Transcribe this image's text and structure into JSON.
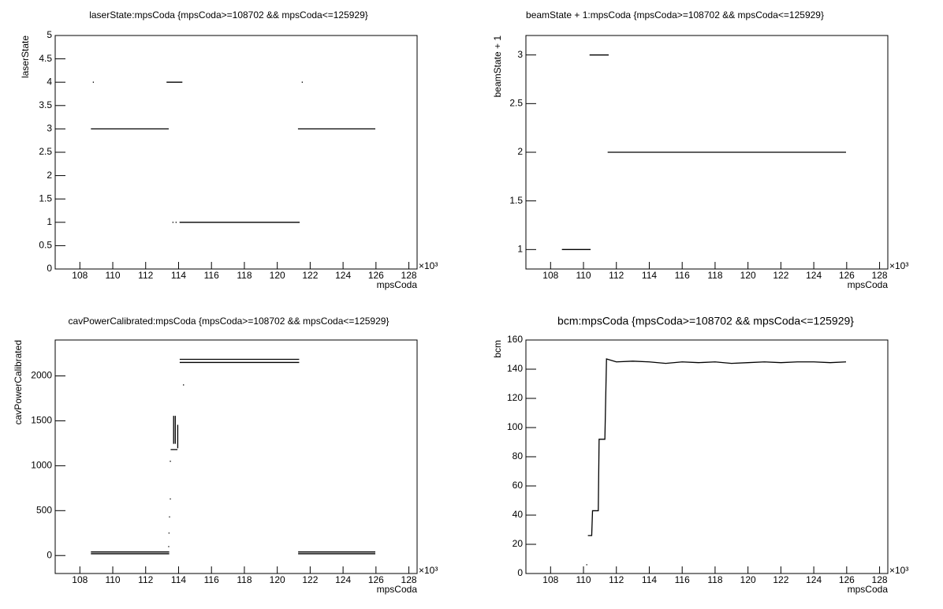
{
  "chart_data": [
    {
      "type": "line",
      "title": "laserState:mpsCoda {mpsCoda>=108702 && mpsCoda<=125929}",
      "x_label": "mpsCoda",
      "y_label": "laserState",
      "x_multiplier": "×10³",
      "color": "#000000",
      "x": [
        108820,
        null,
        108702,
        113370,
        null,
        113300,
        114200,
        null,
        113660,
        null,
        113850,
        null,
        114090,
        121330,
        null,
        121520,
        null,
        121290,
        125929
      ],
      "values": [
        4,
        null,
        3,
        3,
        null,
        4,
        4,
        null,
        1,
        null,
        1,
        null,
        1,
        1,
        null,
        4,
        null,
        3,
        3
      ],
      "xlim": [
        106500,
        128500
      ],
      "ylim": [
        0,
        5
      ],
      "xticks": [
        {
          "value": 108000,
          "label": "108"
        },
        {
          "value": 110000,
          "label": "110"
        },
        {
          "value": 112000,
          "label": "112"
        },
        {
          "value": 114000,
          "label": "114"
        },
        {
          "value": 116000,
          "label": "116"
        },
        {
          "value": 118000,
          "label": "118"
        },
        {
          "value": 120000,
          "label": "120"
        },
        {
          "value": 122000,
          "label": "122"
        },
        {
          "value": 124000,
          "label": "124"
        },
        {
          "value": 126000,
          "label": "126"
        },
        {
          "value": 128000,
          "label": "128"
        }
      ],
      "yticks": [
        0,
        0.5,
        1,
        1.5,
        2,
        2.5,
        3,
        3.5,
        4,
        4.5,
        5
      ]
    },
    {
      "type": "line",
      "title": "beamState + 1:mpsCoda {mpsCoda>=108702 && mpsCoda<=125929}",
      "x_label": "mpsCoda",
      "y_label": "beamState + 1",
      "x_multiplier": "×10³",
      "color": "#000000",
      "x": [
        108720,
        110400,
        null,
        110400,
        111500,
        null,
        111500,
        125929
      ],
      "values": [
        1,
        1,
        null,
        3,
        3,
        null,
        2,
        2
      ],
      "xlim": [
        106500,
        128500
      ],
      "ylim": [
        0.8,
        3.2
      ],
      "xticks": [
        {
          "value": 108000,
          "label": "108"
        },
        {
          "value": 110000,
          "label": "110"
        },
        {
          "value": 112000,
          "label": "112"
        },
        {
          "value": 114000,
          "label": "114"
        },
        {
          "value": 116000,
          "label": "116"
        },
        {
          "value": 118000,
          "label": "118"
        },
        {
          "value": 120000,
          "label": "120"
        },
        {
          "value": 122000,
          "label": "122"
        },
        {
          "value": 124000,
          "label": "124"
        },
        {
          "value": 126000,
          "label": "126"
        },
        {
          "value": 128000,
          "label": "128"
        }
      ],
      "yticks": [
        1,
        1.5,
        2,
        2.5,
        3
      ]
    },
    {
      "type": "line",
      "title": "cavPowerCalibrated:mpsCoda {mpsCoda>=108702 && mpsCoda<=125929}",
      "x_label": "mpsCoda",
      "y_label": "cavPowerCalibrated",
      "x_multiplier": "×10³",
      "color": "#000000",
      "x": [
        108702,
        113400,
        null,
        108702,
        113400,
        null,
        113400,
        null,
        113420,
        null,
        113450,
        null,
        113500,
        null,
        113500,
        null,
        113550,
        113900,
        null,
        113700,
        113700,
        null,
        113800,
        113800,
        null,
        113950,
        113950,
        null,
        114300,
        null,
        114100,
        121300,
        null,
        114100,
        121300,
        null,
        121300,
        125929,
        null,
        121300,
        125929
      ],
      "values": [
        20,
        20,
        null,
        40,
        40,
        null,
        100,
        null,
        250,
        null,
        430,
        null,
        630,
        null,
        1050,
        null,
        1180,
        1180,
        null,
        1250,
        1550,
        null,
        1250,
        1550,
        null,
        1200,
        1450,
        null,
        1900,
        null,
        2150,
        2150,
        null,
        2185,
        2185,
        null,
        20,
        20,
        null,
        40,
        40
      ],
      "xlim": [
        106500,
        128500
      ],
      "ylim": [
        -200,
        2400
      ],
      "xticks": [
        {
          "value": 108000,
          "label": "108"
        },
        {
          "value": 110000,
          "label": "110"
        },
        {
          "value": 112000,
          "label": "112"
        },
        {
          "value": 114000,
          "label": "114"
        },
        {
          "value": 116000,
          "label": "116"
        },
        {
          "value": 118000,
          "label": "118"
        },
        {
          "value": 120000,
          "label": "120"
        },
        {
          "value": 122000,
          "label": "122"
        },
        {
          "value": 124000,
          "label": "124"
        },
        {
          "value": 126000,
          "label": "126"
        },
        {
          "value": 128000,
          "label": "128"
        }
      ],
      "yticks": [
        0,
        500,
        1000,
        1500,
        2000
      ]
    },
    {
      "type": "line",
      "title": "bcm:mpsCoda {mpsCoda>=108702 && mpsCoda<=125929}",
      "x_label": "mpsCoda",
      "y_label": "bcm",
      "x_multiplier": "×10³",
      "color": "#000000",
      "x": [
        110200,
        null,
        110300,
        110500,
        110550,
        110900,
        110950,
        111300,
        111400,
        112000,
        113000,
        114000,
        115000,
        116000,
        117000,
        118000,
        119000,
        120000,
        121000,
        122000,
        123000,
        124000,
        125000,
        125929
      ],
      "values": [
        6,
        null,
        26,
        26,
        43,
        43,
        92,
        92,
        147,
        145,
        145.5,
        145,
        144,
        145,
        144.5,
        145,
        144,
        144.5,
        145,
        144.5,
        145,
        145,
        144.5,
        145
      ],
      "xlim": [
        106500,
        128500
      ],
      "ylim": [
        0,
        160
      ],
      "xticks": [
        {
          "value": 108000,
          "label": "108"
        },
        {
          "value": 110000,
          "label": "110"
        },
        {
          "value": 112000,
          "label": "112"
        },
        {
          "value": 114000,
          "label": "114"
        },
        {
          "value": 116000,
          "label": "116"
        },
        {
          "value": 118000,
          "label": "118"
        },
        {
          "value": 120000,
          "label": "120"
        },
        {
          "value": 122000,
          "label": "122"
        },
        {
          "value": 124000,
          "label": "124"
        },
        {
          "value": 126000,
          "label": "126"
        },
        {
          "value": 128000,
          "label": "128"
        }
      ],
      "yticks": [
        0,
        20,
        40,
        60,
        80,
        100,
        120,
        140,
        160
      ]
    }
  ]
}
